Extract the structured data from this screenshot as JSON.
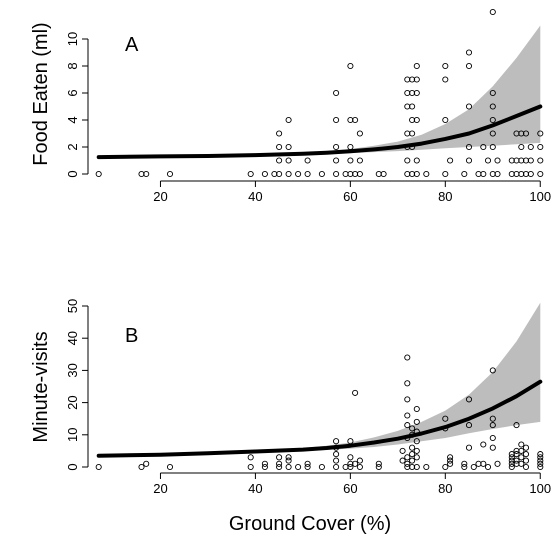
{
  "figure": {
    "xlabel": "Ground Cover (%)"
  },
  "chart_data": [
    {
      "panel": "A",
      "type": "scatter",
      "ylabel": "Food Eaten (ml)",
      "xlim": [
        6,
        101
      ],
      "ylim": [
        0,
        12
      ],
      "xticks": [
        20,
        40,
        60,
        80,
        100
      ],
      "yticks": [
        0,
        2,
        4,
        6,
        8,
        10
      ],
      "grid": false,
      "legend": "none",
      "points": [
        [
          7,
          0
        ],
        [
          16,
          0
        ],
        [
          17,
          0
        ],
        [
          22,
          0
        ],
        [
          39,
          0
        ],
        [
          42,
          0
        ],
        [
          44,
          0
        ],
        [
          45,
          0
        ],
        [
          45,
          1
        ],
        [
          45,
          2
        ],
        [
          45,
          3
        ],
        [
          47,
          0
        ],
        [
          47,
          1
        ],
        [
          47,
          2
        ],
        [
          47,
          4
        ],
        [
          49,
          0
        ],
        [
          51,
          0
        ],
        [
          51,
          1
        ],
        [
          54,
          0
        ],
        [
          57,
          0
        ],
        [
          57,
          1
        ],
        [
          57,
          2
        ],
        [
          57,
          4
        ],
        [
          57,
          6
        ],
        [
          59,
          0
        ],
        [
          60,
          0
        ],
        [
          60,
          1
        ],
        [
          60,
          2
        ],
        [
          60,
          4
        ],
        [
          60,
          8
        ],
        [
          61,
          0
        ],
        [
          61,
          4
        ],
        [
          62,
          0
        ],
        [
          62,
          1
        ],
        [
          62,
          3
        ],
        [
          66,
          0
        ],
        [
          67,
          0
        ],
        [
          72,
          0
        ],
        [
          72,
          1
        ],
        [
          72,
          2
        ],
        [
          72,
          3
        ],
        [
          72,
          5
        ],
        [
          72,
          6
        ],
        [
          72,
          7
        ],
        [
          73,
          0
        ],
        [
          73,
          2
        ],
        [
          73,
          3
        ],
        [
          73,
          4
        ],
        [
          73,
          5
        ],
        [
          73,
          6
        ],
        [
          73,
          7
        ],
        [
          74,
          0
        ],
        [
          74,
          1
        ],
        [
          74,
          4
        ],
        [
          74,
          6
        ],
        [
          74,
          7
        ],
        [
          74,
          8
        ],
        [
          76,
          0
        ],
        [
          80,
          0
        ],
        [
          80,
          4
        ],
        [
          80,
          7
        ],
        [
          80,
          8
        ],
        [
          81,
          1
        ],
        [
          84,
          0
        ],
        [
          85,
          1
        ],
        [
          85,
          2
        ],
        [
          85,
          5
        ],
        [
          85,
          8
        ],
        [
          85,
          9
        ],
        [
          87,
          0
        ],
        [
          88,
          2
        ],
        [
          88,
          0
        ],
        [
          89,
          1
        ],
        [
          90,
          0
        ],
        [
          90,
          2
        ],
        [
          90,
          3
        ],
        [
          90,
          4
        ],
        [
          90,
          5
        ],
        [
          90,
          6
        ],
        [
          90,
          12
        ],
        [
          91,
          0
        ],
        [
          91,
          1
        ],
        [
          94,
          0
        ],
        [
          94,
          1
        ],
        [
          95,
          0
        ],
        [
          95,
          1
        ],
        [
          95,
          3
        ],
        [
          96,
          0
        ],
        [
          96,
          1
        ],
        [
          96,
          2
        ],
        [
          96,
          3
        ],
        [
          97,
          0
        ],
        [
          97,
          1
        ],
        [
          97,
          3
        ],
        [
          98,
          0
        ],
        [
          98,
          1
        ],
        [
          98,
          2
        ],
        [
          100,
          0
        ],
        [
          100,
          1
        ],
        [
          100,
          2
        ],
        [
          100,
          3
        ]
      ],
      "fit": {
        "x": [
          7,
          20,
          30,
          40,
          50,
          55,
          60,
          65,
          70,
          75,
          80,
          85,
          90,
          95,
          100
        ],
        "y": [
          1.25,
          1.3,
          1.33,
          1.4,
          1.5,
          1.58,
          1.68,
          1.82,
          2.0,
          2.25,
          2.6,
          3.0,
          3.6,
          4.3,
          5.0
        ],
        "lower": [
          1.25,
          1.3,
          1.33,
          1.38,
          1.45,
          1.5,
          1.55,
          1.62,
          1.7,
          1.8,
          1.9,
          2.0,
          2.1,
          2.2,
          2.3
        ],
        "upper": [
          1.25,
          1.3,
          1.33,
          1.42,
          1.55,
          1.68,
          1.85,
          2.1,
          2.4,
          2.9,
          3.7,
          4.8,
          6.5,
          8.6,
          11.0
        ]
      }
    },
    {
      "panel": "B",
      "type": "scatter",
      "ylabel": "Minute-visits",
      "xlim": [
        6,
        101
      ],
      "ylim": [
        0,
        50
      ],
      "xticks": [
        20,
        40,
        60,
        80,
        100
      ],
      "yticks": [
        0,
        10,
        20,
        30,
        40,
        50
      ],
      "grid": false,
      "legend": "none",
      "points": [
        [
          7,
          0
        ],
        [
          16,
          0
        ],
        [
          17,
          1
        ],
        [
          22,
          0
        ],
        [
          39,
          0
        ],
        [
          39,
          3
        ],
        [
          42,
          0
        ],
        [
          42,
          1
        ],
        [
          45,
          0
        ],
        [
          45,
          1
        ],
        [
          45,
          3
        ],
        [
          47,
          0
        ],
        [
          47,
          2
        ],
        [
          47,
          3
        ],
        [
          49,
          0
        ],
        [
          51,
          0
        ],
        [
          51,
          1
        ],
        [
          54,
          0
        ],
        [
          57,
          0
        ],
        [
          57,
          2
        ],
        [
          57,
          4
        ],
        [
          57,
          6
        ],
        [
          57,
          8
        ],
        [
          59,
          0
        ],
        [
          60,
          0
        ],
        [
          60,
          1
        ],
        [
          60,
          3
        ],
        [
          60,
          8
        ],
        [
          61,
          1
        ],
        [
          61,
          23
        ],
        [
          62,
          0
        ],
        [
          62,
          2
        ],
        [
          66,
          0
        ],
        [
          66,
          1
        ],
        [
          71,
          2
        ],
        [
          71,
          5
        ],
        [
          72,
          0
        ],
        [
          72,
          1
        ],
        [
          72,
          3
        ],
        [
          72,
          9
        ],
        [
          72,
          13
        ],
        [
          72,
          16
        ],
        [
          72,
          21
        ],
        [
          72,
          26
        ],
        [
          72,
          34
        ],
        [
          73,
          0
        ],
        [
          73,
          2
        ],
        [
          73,
          4
        ],
        [
          73,
          6
        ],
        [
          73,
          10
        ],
        [
          73,
          12
        ],
        [
          74,
          0
        ],
        [
          74,
          3
        ],
        [
          74,
          5
        ],
        [
          74,
          8
        ],
        [
          74,
          11
        ],
        [
          74,
          14
        ],
        [
          74,
          18
        ],
        [
          76,
          0
        ],
        [
          80,
          0
        ],
        [
          80,
          12
        ],
        [
          80,
          15
        ],
        [
          81,
          1
        ],
        [
          81,
          2
        ],
        [
          81,
          3
        ],
        [
          84,
          0
        ],
        [
          84,
          1
        ],
        [
          85,
          6
        ],
        [
          85,
          13
        ],
        [
          85,
          21
        ],
        [
          86,
          0
        ],
        [
          87,
          1
        ],
        [
          88,
          1
        ],
        [
          88,
          7
        ],
        [
          89,
          0
        ],
        [
          90,
          6
        ],
        [
          90,
          9
        ],
        [
          90,
          13
        ],
        [
          90,
          15
        ],
        [
          90,
          30
        ],
        [
          91,
          1
        ],
        [
          94,
          0
        ],
        [
          94,
          1
        ],
        [
          94,
          2
        ],
        [
          94,
          3
        ],
        [
          94,
          4
        ],
        [
          95,
          1
        ],
        [
          95,
          2
        ],
        [
          95,
          4
        ],
        [
          95,
          5
        ],
        [
          95,
          13
        ],
        [
          96,
          1
        ],
        [
          96,
          3
        ],
        [
          96,
          5
        ],
        [
          96,
          7
        ],
        [
          97,
          0
        ],
        [
          97,
          2
        ],
        [
          97,
          4
        ],
        [
          97,
          6
        ],
        [
          100,
          0
        ],
        [
          100,
          1
        ],
        [
          100,
          2
        ],
        [
          100,
          3
        ],
        [
          100,
          4
        ]
      ],
      "fit": {
        "x": [
          7,
          20,
          30,
          40,
          50,
          55,
          60,
          65,
          70,
          75,
          80,
          85,
          90,
          95,
          100
        ],
        "y": [
          3.5,
          3.8,
          4.3,
          4.8,
          5.4,
          5.9,
          6.6,
          7.6,
          8.8,
          10.4,
          12.4,
          15.0,
          18.2,
          22.0,
          26.5
        ],
        "lower": [
          3.5,
          3.8,
          4.2,
          4.6,
          5.0,
          5.3,
          5.7,
          6.2,
          7.0,
          8.0,
          9.0,
          10.5,
          11.8,
          13.0,
          14.0
        ],
        "upper": [
          3.5,
          3.8,
          4.4,
          5.0,
          5.9,
          6.6,
          7.6,
          9.2,
          11.2,
          14.0,
          17.5,
          22.5,
          29.5,
          39.0,
          51.0
        ]
      }
    }
  ]
}
